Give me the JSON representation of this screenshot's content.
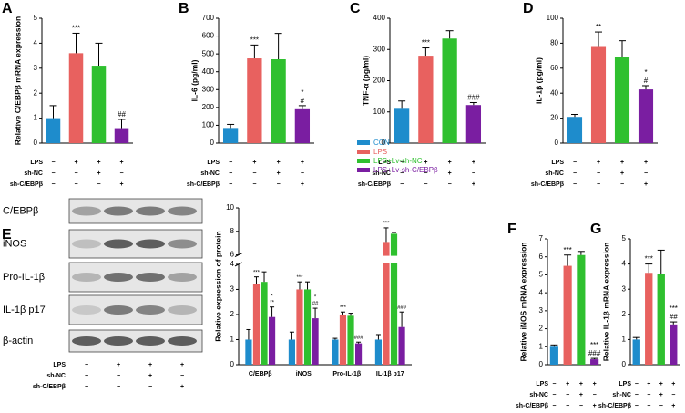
{
  "chart_data": [
    {
      "type": "bar",
      "panel": "A",
      "ylabel": "Relative C/EBPβ mRNA expression",
      "values": [
        1.0,
        3.6,
        3.1,
        0.6
      ],
      "errors": [
        0.5,
        0.8,
        0.9,
        0.35
      ],
      "colors": [
        "#1e8ccc",
        "#e8615f",
        "#2fc02f",
        "#7a1ea1"
      ],
      "ylim": [
        0,
        5
      ],
      "yticks": [
        0,
        1,
        2,
        3,
        4,
        5
      ],
      "sig_labels": [
        null,
        [
          "***"
        ],
        null,
        [
          "##"
        ]
      ],
      "treatments": [
        {
          "label": "LPS",
          "marks": [
            "−",
            "+",
            "+",
            "+"
          ]
        },
        {
          "label": "sh-NC",
          "marks": [
            "−",
            "−",
            "+",
            "−"
          ]
        },
        {
          "label": "sh-C/EBPβ",
          "marks": [
            "−",
            "−",
            "−",
            "+"
          ]
        }
      ]
    },
    {
      "type": "bar",
      "panel": "B",
      "ylabel": "IL-6 (pg/ml)",
      "values": [
        85,
        475,
        470,
        190
      ],
      "errors": [
        20,
        75,
        145,
        20
      ],
      "colors": [
        "#1e8ccc",
        "#e8615f",
        "#2fc02f",
        "#7a1ea1"
      ],
      "ylim": [
        0,
        700
      ],
      "yticks": [
        0,
        100,
        200,
        300,
        400,
        500,
        600,
        700
      ],
      "sig_labels": [
        null,
        [
          "***"
        ],
        null,
        [
          "*",
          "#"
        ]
      ],
      "treatments": [
        {
          "label": "LPS",
          "marks": [
            "−",
            "+",
            "+",
            "+"
          ]
        },
        {
          "label": "sh-NC",
          "marks": [
            "−",
            "−",
            "+",
            "−"
          ]
        },
        {
          "label": "sh-C/EBPβ",
          "marks": [
            "−",
            "−",
            "−",
            "+"
          ]
        }
      ]
    },
    {
      "type": "bar",
      "panel": "C",
      "ylabel": "TNF-α (pg/ml)",
      "values": [
        110,
        280,
        335,
        122
      ],
      "errors": [
        25,
        25,
        25,
        8
      ],
      "colors": [
        "#1e8ccc",
        "#e8615f",
        "#2fc02f",
        "#7a1ea1"
      ],
      "ylim": [
        0,
        400
      ],
      "yticks": [
        0,
        100,
        200,
        300,
        400
      ],
      "sig_labels": [
        null,
        [
          "***"
        ],
        null,
        [
          "###"
        ]
      ],
      "treatments": [
        {
          "label": "LPS",
          "marks": [
            "−",
            "+",
            "+",
            "+"
          ]
        },
        {
          "label": "sh-NC",
          "marks": [
            "−",
            "−",
            "+",
            "−"
          ]
        },
        {
          "label": "sh-C/EBPβ",
          "marks": [
            "−",
            "−",
            "−",
            "+"
          ]
        }
      ]
    },
    {
      "type": "bar",
      "panel": "D",
      "ylabel": "IL-1β (pg/ml)",
      "values": [
        21,
        77,
        69,
        43
      ],
      "errors": [
        2,
        12,
        13,
        3
      ],
      "colors": [
        "#1e8ccc",
        "#e8615f",
        "#2fc02f",
        "#7a1ea1"
      ],
      "ylim": [
        0,
        100
      ],
      "yticks": [
        0,
        20,
        40,
        60,
        80,
        100
      ],
      "sig_labels": [
        null,
        [
          "**"
        ],
        null,
        [
          "*",
          "#"
        ]
      ],
      "treatments": [
        {
          "label": "LPS",
          "marks": [
            "−",
            "+",
            "+",
            "+"
          ]
        },
        {
          "label": "sh-NC",
          "marks": [
            "−",
            "−",
            "+",
            "−"
          ]
        },
        {
          "label": "sh-C/EBPβ",
          "marks": [
            "−",
            "−",
            "−",
            "+"
          ]
        }
      ]
    },
    {
      "type": "grouped-bar",
      "ylabel": "Relative expression of protein",
      "categories": [
        "C/EBPβ",
        "iNOS",
        "Pro-IL-1β",
        "IL-1β p17"
      ],
      "ylim": [
        0,
        10
      ],
      "ybreak": [
        4,
        6
      ],
      "yticks": [
        0,
        1,
        2,
        3,
        4,
        6,
        8,
        10
      ],
      "series": [
        {
          "name": "CON",
          "color": "#1e8ccc",
          "values": [
            1.0,
            1.0,
            1.0,
            1.0
          ],
          "errors": [
            0.4,
            0.3,
            0.05,
            0.2
          ],
          "sig_labels": [
            null,
            null,
            null,
            null
          ]
        },
        {
          "name": "LPS",
          "color": "#e8615f",
          "values": [
            3.2,
            3.0,
            2.0,
            7.1
          ],
          "errors": [
            0.3,
            0.3,
            0.1,
            1.2
          ],
          "sig_labels": [
            [
              "***"
            ],
            [
              "***"
            ],
            [
              "***"
            ],
            [
              "***"
            ]
          ]
        },
        {
          "name": "LPS+Lv-sh-NC",
          "color": "#2fc02f",
          "values": [
            3.3,
            3.0,
            1.95,
            7.8
          ],
          "errors": [
            0.4,
            0.3,
            0.1,
            0.1
          ],
          "sig_labels": [
            null,
            null,
            null,
            null
          ]
        },
        {
          "name": "LPS+Lv-sh-C/EBPβ",
          "color": "#7a1ea1",
          "values": [
            1.9,
            1.85,
            0.85,
            1.5
          ],
          "errors": [
            0.4,
            0.4,
            0.05,
            0.6
          ],
          "sig_labels": [
            [
              "*",
              "**"
            ],
            [
              "*",
              "##"
            ],
            [
              "###"
            ],
            [
              "###"
            ]
          ]
        }
      ]
    },
    {
      "type": "bar",
      "panel": "F",
      "ylabel": "Relative iNOS mRNA expression",
      "values": [
        1.0,
        5.5,
        6.1,
        0.3
      ],
      "errors": [
        0.1,
        0.6,
        0.2,
        0.05
      ],
      "colors": [
        "#1e8ccc",
        "#e8615f",
        "#2fc02f",
        "#7a1ea1"
      ],
      "ylim": [
        0,
        7
      ],
      "yticks": [
        0,
        1,
        2,
        3,
        4,
        5,
        6,
        7
      ],
      "sig_labels": [
        null,
        [
          "***"
        ],
        null,
        [
          "***",
          "###"
        ]
      ],
      "treatments": [
        {
          "label": "LPS",
          "marks": [
            "−",
            "+",
            "+",
            "+"
          ]
        },
        {
          "label": "sh-NC",
          "marks": [
            "−",
            "−",
            "+",
            "−"
          ]
        },
        {
          "label": "sh-C/EBPβ",
          "marks": [
            "−",
            "−",
            "−",
            "+"
          ]
        }
      ]
    },
    {
      "type": "bar",
      "panel": "G",
      "ylabel": "Relative IL-1β mRNA expression",
      "values": [
        1.0,
        3.65,
        3.6,
        1.6
      ],
      "errors": [
        0.08,
        0.35,
        0.95,
        0.1
      ],
      "colors": [
        "#1e8ccc",
        "#e8615f",
        "#2fc02f",
        "#7a1ea1"
      ],
      "ylim": [
        0,
        5
      ],
      "yticks": [
        0,
        1,
        2,
        3,
        4,
        5
      ],
      "sig_labels": [
        null,
        [
          "***"
        ],
        null,
        [
          "***",
          "##"
        ]
      ],
      "treatments": [
        {
          "label": "LPS",
          "marks": [
            "−",
            "+",
            "+",
            "+"
          ]
        },
        {
          "label": "sh-NC",
          "marks": [
            "−",
            "−",
            "+",
            "−"
          ]
        },
        {
          "label": "sh-C/EBPβ",
          "marks": [
            "−",
            "−",
            "−",
            "+"
          ]
        }
      ]
    }
  ],
  "blot": {
    "panel": "E",
    "bands": [
      "C/EBPβ",
      "iNOS",
      "Pro-IL-1β",
      "IL-1β p17",
      "β-actin"
    ],
    "treatments": [
      {
        "label": "LPS",
        "marks": [
          "−",
          "+",
          "+",
          "+"
        ]
      },
      {
        "label": "sh-NC",
        "marks": [
          "−",
          "−",
          "+",
          "−"
        ]
      },
      {
        "label": "sh-C/EBPβ",
        "marks": [
          "−",
          "−",
          "−",
          "+"
        ]
      }
    ]
  }
}
